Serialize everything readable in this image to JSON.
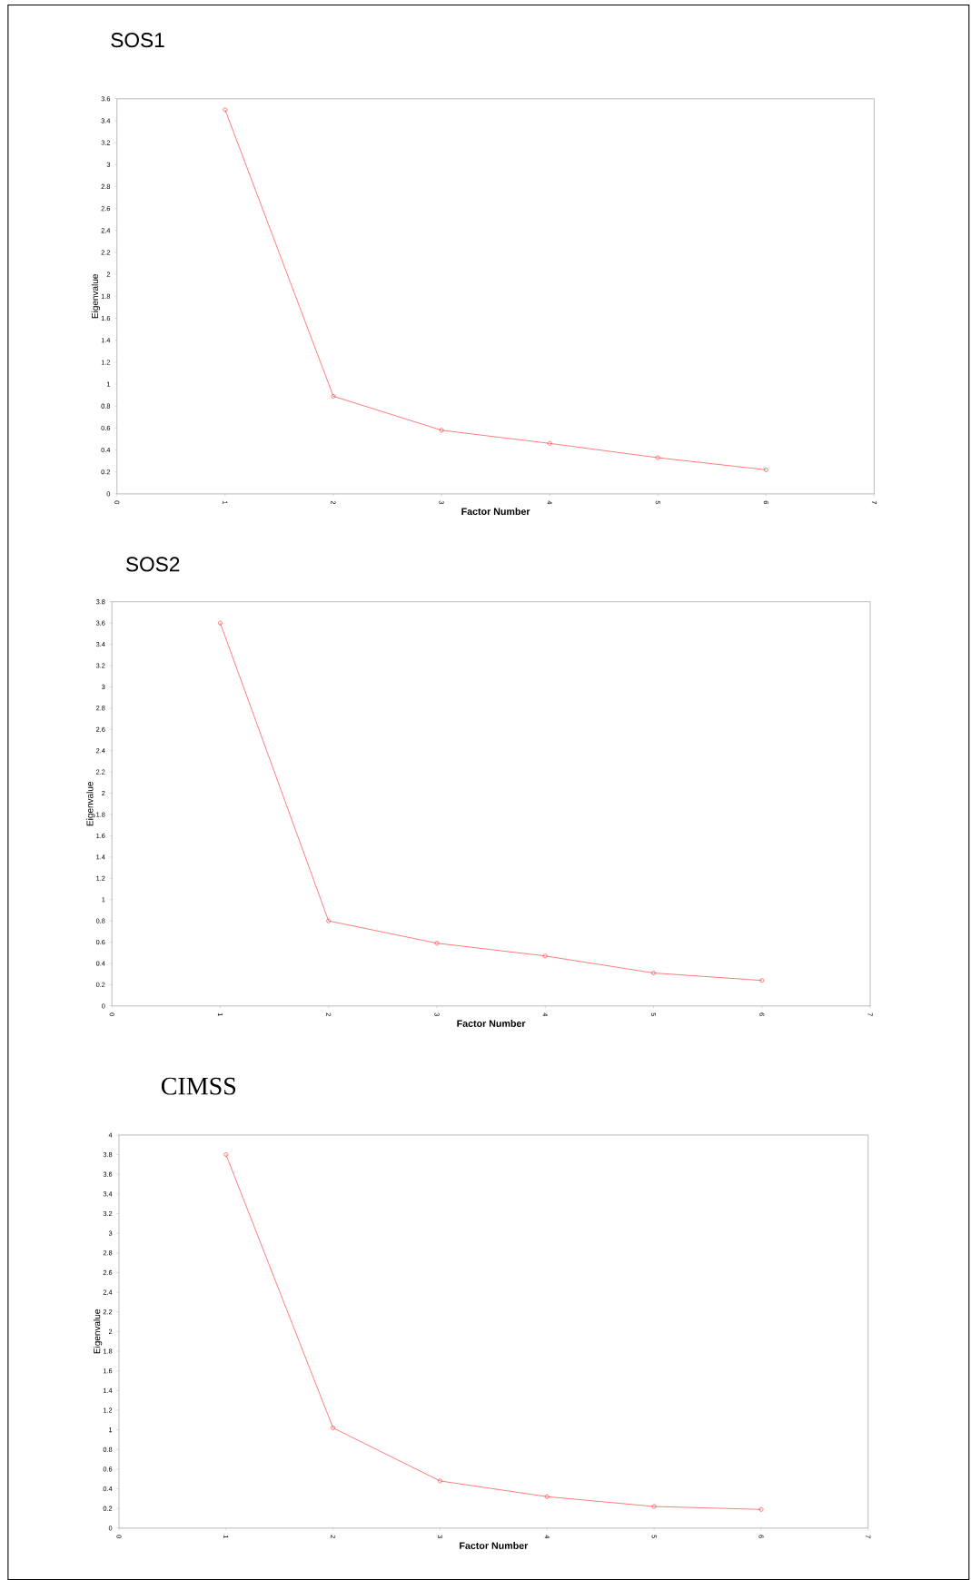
{
  "chart_data": [
    {
      "type": "line",
      "title": "SOS1",
      "xlabel": "Factor Number",
      "ylabel": "Eigenvalue",
      "x": [
        1,
        2,
        3,
        4,
        5,
        6
      ],
      "series": [
        {
          "color": "#ff3b3b",
          "values": [
            3.5,
            0.89,
            0.58,
            0.46,
            0.33,
            0.22
          ]
        }
      ],
      "xlim": [
        0,
        7
      ],
      "xticks": [
        0,
        1,
        2,
        3,
        4,
        5,
        6,
        7
      ],
      "ylim": [
        0,
        3.6
      ],
      "yticks": [
        0,
        0.2,
        0.4,
        0.6,
        0.8,
        1,
        1.2,
        1.4,
        1.6,
        1.8,
        2,
        2.2,
        2.4,
        2.6,
        2.8,
        3,
        3.2,
        3.4,
        3.6
      ],
      "marker": "circle",
      "line_style": "solid",
      "grid": false
    },
    {
      "type": "line",
      "title": "SOS2",
      "xlabel": "Factor Number",
      "ylabel": "Eigenvalue",
      "x": [
        1,
        2,
        3,
        4,
        5,
        6
      ],
      "series": [
        {
          "color": "#ff3b3b",
          "values": [
            3.6,
            0.8,
            0.59,
            0.47,
            0.31,
            0.24
          ]
        }
      ],
      "xlim": [
        0,
        7
      ],
      "xticks": [
        0,
        1,
        2,
        3,
        4,
        5,
        6,
        7
      ],
      "ylim": [
        0,
        3.8
      ],
      "yticks": [
        0,
        0.2,
        0.4,
        0.6,
        0.8,
        1,
        1.2,
        1.4,
        1.6,
        1.8,
        2,
        2.2,
        2.4,
        2.6,
        2.8,
        3,
        3.2,
        3.4,
        3.6,
        3.8
      ],
      "marker": "circle",
      "line_style": "solid",
      "grid": false
    },
    {
      "type": "line",
      "title": "CIMSS",
      "xlabel": "Factor Number",
      "ylabel": "Eigenvalue",
      "x": [
        1,
        2,
        3,
        4,
        5,
        6
      ],
      "series": [
        {
          "color": "#ff3b3b",
          "values": [
            3.8,
            1.02,
            0.48,
            0.32,
            0.22,
            0.19
          ]
        }
      ],
      "xlim": [
        0,
        7
      ],
      "xticks": [
        0,
        1,
        2,
        3,
        4,
        5,
        6,
        7
      ],
      "ylim": [
        0,
        4
      ],
      "yticks": [
        0,
        0.2,
        0.4,
        0.6,
        0.8,
        1,
        1.2,
        1.4,
        1.6,
        1.8,
        2,
        2.2,
        2.4,
        2.6,
        2.8,
        3,
        3.2,
        3.4,
        3.6,
        3.8,
        4
      ],
      "marker": "circle",
      "line_style": "solid",
      "grid": false
    }
  ]
}
